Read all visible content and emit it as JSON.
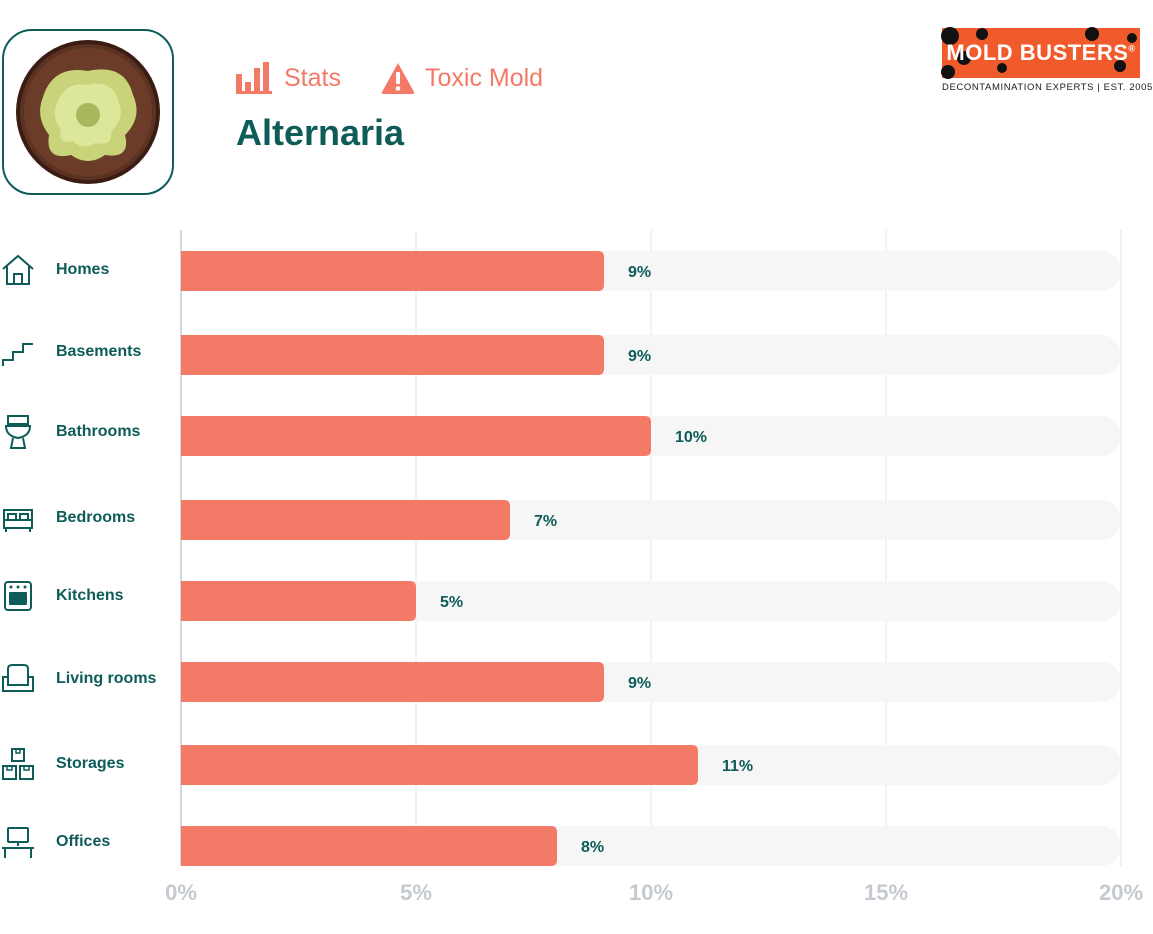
{
  "header": {
    "tag_stats": "Stats",
    "tag_toxic": "Toxic Mold",
    "title": "Alternaria",
    "accent_color": "#f47a68",
    "title_color": "#0d5c58"
  },
  "logo": {
    "name": "MOLD BUSTERS",
    "registered": "®",
    "tagline": "DECONTAMINATION EXPERTS | EST. 2005",
    "color": "#f15a2b"
  },
  "icons": [
    "house-icon",
    "stairs-icon",
    "toilet-icon",
    "bed-icon",
    "oven-icon",
    "armchair-icon",
    "boxes-icon",
    "computer-desk-icon"
  ],
  "chart_data": {
    "type": "bar",
    "orientation": "horizontal",
    "categories": [
      "Homes",
      "Basements",
      "Bathrooms",
      "Bedrooms",
      "Kitchens",
      "Living rooms",
      "Storages",
      "Offices"
    ],
    "values": [
      9,
      9,
      10,
      7,
      5,
      9,
      11,
      8
    ],
    "value_labels": [
      "9%",
      "9%",
      "10%",
      "7%",
      "5%",
      "9%",
      "11%",
      "8%"
    ],
    "xlim": [
      0,
      20
    ],
    "x_ticks": [
      0,
      5,
      10,
      15,
      20
    ],
    "x_tick_labels": [
      "0%",
      "5%",
      "10%",
      "15%",
      "20%"
    ],
    "grid": true,
    "bar_color": "#f47a68",
    "track_color": "#f6f6f6"
  }
}
